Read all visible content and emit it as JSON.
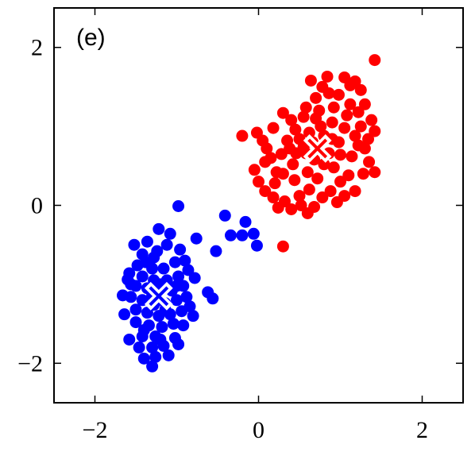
{
  "chart_data": {
    "type": "scatter",
    "title": "",
    "panel_label": "(e)",
    "xlabel": "",
    "ylabel": "",
    "xlim": [
      -2.5,
      2.5
    ],
    "ylim": [
      -2.5,
      2.5
    ],
    "x_ticks": [
      -2,
      0,
      2
    ],
    "y_ticks": [
      -2,
      0,
      2
    ],
    "x_tick_labels": [
      "−2",
      "0",
      "2"
    ],
    "y_tick_labels": [
      "−2",
      "0",
      "2"
    ],
    "grid": false,
    "legend": "none",
    "series": [
      {
        "color": "#ff0000",
        "centroid": [
          0.72,
          0.72
        ],
        "points": [
          [
            1.42,
            1.84
          ],
          [
            1.18,
            1.57
          ],
          [
            0.84,
            1.63
          ],
          [
            0.98,
            1.4
          ],
          [
            1.12,
            1.52
          ],
          [
            0.86,
            1.42
          ],
          [
            0.7,
            1.36
          ],
          [
            0.78,
            1.5
          ],
          [
            1.05,
            1.62
          ],
          [
            1.25,
            1.46
          ],
          [
            1.3,
            1.28
          ],
          [
            1.12,
            1.28
          ],
          [
            0.92,
            1.24
          ],
          [
            0.74,
            1.2
          ],
          [
            0.58,
            1.24
          ],
          [
            0.55,
            1.12
          ],
          [
            0.4,
            1.08
          ],
          [
            0.3,
            1.17
          ],
          [
            1.38,
            1.08
          ],
          [
            1.25,
            1.0
          ],
          [
            1.18,
            0.88
          ],
          [
            1.42,
            0.94
          ],
          [
            1.3,
            0.72
          ],
          [
            1.14,
            0.62
          ],
          [
            1.35,
            0.55
          ],
          [
            1.42,
            0.42
          ],
          [
            1.28,
            0.4
          ],
          [
            1.1,
            0.38
          ],
          [
            1.18,
            0.18
          ],
          [
            1.0,
            0.3
          ],
          [
            0.88,
            0.18
          ],
          [
            0.78,
            0.1
          ],
          [
            0.62,
            0.2
          ],
          [
            0.5,
            0.12
          ],
          [
            0.52,
            0.0
          ],
          [
            0.6,
            -0.1
          ],
          [
            0.4,
            -0.05
          ],
          [
            0.32,
            0.05
          ],
          [
            0.24,
            -0.03
          ],
          [
            0.18,
            0.1
          ],
          [
            0.08,
            0.18
          ],
          [
            0.0,
            0.3
          ],
          [
            -0.05,
            0.45
          ],
          [
            0.08,
            0.55
          ],
          [
            0.22,
            0.42
          ],
          [
            0.1,
            0.72
          ],
          [
            -0.02,
            0.92
          ],
          [
            0.18,
            0.98
          ],
          [
            0.35,
            0.82
          ],
          [
            -0.2,
            0.88
          ],
          [
            0.28,
            0.65
          ],
          [
            0.42,
            0.52
          ],
          [
            0.44,
            0.32
          ],
          [
            0.6,
            0.42
          ],
          [
            0.72,
            0.34
          ],
          [
            0.8,
            0.52
          ],
          [
            0.92,
            0.48
          ],
          [
            1.0,
            0.64
          ],
          [
            0.98,
            0.8
          ],
          [
            1.05,
            0.98
          ],
          [
            0.9,
            1.05
          ],
          [
            0.76,
            1.0
          ],
          [
            0.62,
            0.92
          ],
          [
            0.5,
            0.84
          ],
          [
            0.58,
            0.66
          ],
          [
            0.68,
            0.58
          ],
          [
            0.86,
            0.66
          ],
          [
            0.9,
            0.84
          ],
          [
            0.8,
            0.88
          ],
          [
            0.66,
            0.8
          ],
          [
            0.55,
            0.74
          ],
          [
            0.46,
            0.66
          ],
          [
            0.38,
            0.72
          ],
          [
            0.3,
            0.4
          ],
          [
            0.2,
            0.28
          ],
          [
            1.22,
            0.76
          ],
          [
            1.34,
            0.84
          ],
          [
            1.08,
            1.14
          ],
          [
            0.7,
            1.1
          ],
          [
            0.45,
            0.96
          ],
          [
            0.15,
            0.6
          ],
          [
            0.05,
            0.82
          ],
          [
            1.22,
            1.18
          ],
          [
            0.64,
            1.58
          ],
          [
            1.05,
            0.12
          ],
          [
            0.96,
            0.04
          ],
          [
            0.68,
            -0.02
          ],
          [
            0.3,
            -0.52
          ]
        ]
      },
      {
        "color": "#0000ff",
        "centroid": [
          -1.22,
          -1.15
        ],
        "points": [
          [
            -0.98,
            -0.01
          ],
          [
            -0.41,
            -0.13
          ],
          [
            -0.16,
            -0.21
          ],
          [
            -0.06,
            -0.36
          ],
          [
            -0.2,
            -0.38
          ],
          [
            -0.02,
            -0.51
          ],
          [
            -0.76,
            -0.42
          ],
          [
            -0.52,
            -0.58
          ],
          [
            -0.34,
            -0.38
          ],
          [
            -1.08,
            -0.36
          ],
          [
            -1.22,
            -0.3
          ],
          [
            -1.36,
            -0.46
          ],
          [
            -1.52,
            -0.5
          ],
          [
            -1.42,
            -0.62
          ],
          [
            -1.28,
            -0.66
          ],
          [
            -1.12,
            -0.5
          ],
          [
            -0.96,
            -0.56
          ],
          [
            -0.9,
            -0.7
          ],
          [
            -1.02,
            -0.72
          ],
          [
            -1.16,
            -0.8
          ],
          [
            -1.3,
            -0.8
          ],
          [
            -1.48,
            -0.76
          ],
          [
            -1.58,
            -0.86
          ],
          [
            -1.42,
            -0.9
          ],
          [
            -1.28,
            -0.95
          ],
          [
            -1.12,
            -0.95
          ],
          [
            -0.98,
            -0.9
          ],
          [
            -0.86,
            -0.82
          ],
          [
            -0.78,
            -0.92
          ],
          [
            -0.92,
            -1.02
          ],
          [
            -1.06,
            -1.08
          ],
          [
            -1.2,
            -1.1
          ],
          [
            -1.36,
            -1.05
          ],
          [
            -1.5,
            -1.02
          ],
          [
            -1.56,
            -1.16
          ],
          [
            -1.42,
            -1.2
          ],
          [
            -1.28,
            -1.26
          ],
          [
            -1.14,
            -1.24
          ],
          [
            -1.0,
            -1.2
          ],
          [
            -0.88,
            -1.16
          ],
          [
            -0.94,
            -1.34
          ],
          [
            -1.08,
            -1.38
          ],
          [
            -1.22,
            -1.4
          ],
          [
            -1.36,
            -1.36
          ],
          [
            -1.5,
            -1.32
          ],
          [
            -1.64,
            -1.38
          ],
          [
            -1.5,
            -1.48
          ],
          [
            -1.34,
            -1.52
          ],
          [
            -1.18,
            -1.54
          ],
          [
            -1.04,
            -1.5
          ],
          [
            -0.92,
            -1.52
          ],
          [
            -1.26,
            -1.66
          ],
          [
            -1.42,
            -1.66
          ],
          [
            -1.58,
            -1.7
          ],
          [
            -1.46,
            -1.8
          ],
          [
            -1.3,
            -1.8
          ],
          [
            -1.16,
            -1.78
          ],
          [
            -1.02,
            -1.68
          ],
          [
            -0.98,
            -1.76
          ],
          [
            -1.1,
            -1.9
          ],
          [
            -1.26,
            -1.92
          ],
          [
            -1.4,
            -1.94
          ],
          [
            -1.3,
            -2.04
          ],
          [
            -0.62,
            -1.1
          ],
          [
            -0.56,
            -1.18
          ],
          [
            -0.84,
            -1.28
          ],
          [
            -1.66,
            -1.14
          ],
          [
            -1.56,
            -1.0
          ],
          [
            -1.6,
            -0.94
          ],
          [
            -1.2,
            -1.0
          ],
          [
            -1.3,
            -1.14
          ],
          [
            -1.14,
            -1.32
          ],
          [
            -1.0,
            -1.02
          ],
          [
            -1.24,
            -0.58
          ],
          [
            -1.38,
            -0.72
          ],
          [
            -0.8,
            -1.4
          ],
          [
            -1.4,
            -1.58
          ],
          [
            -1.2,
            -1.7
          ]
        ]
      }
    ]
  }
}
